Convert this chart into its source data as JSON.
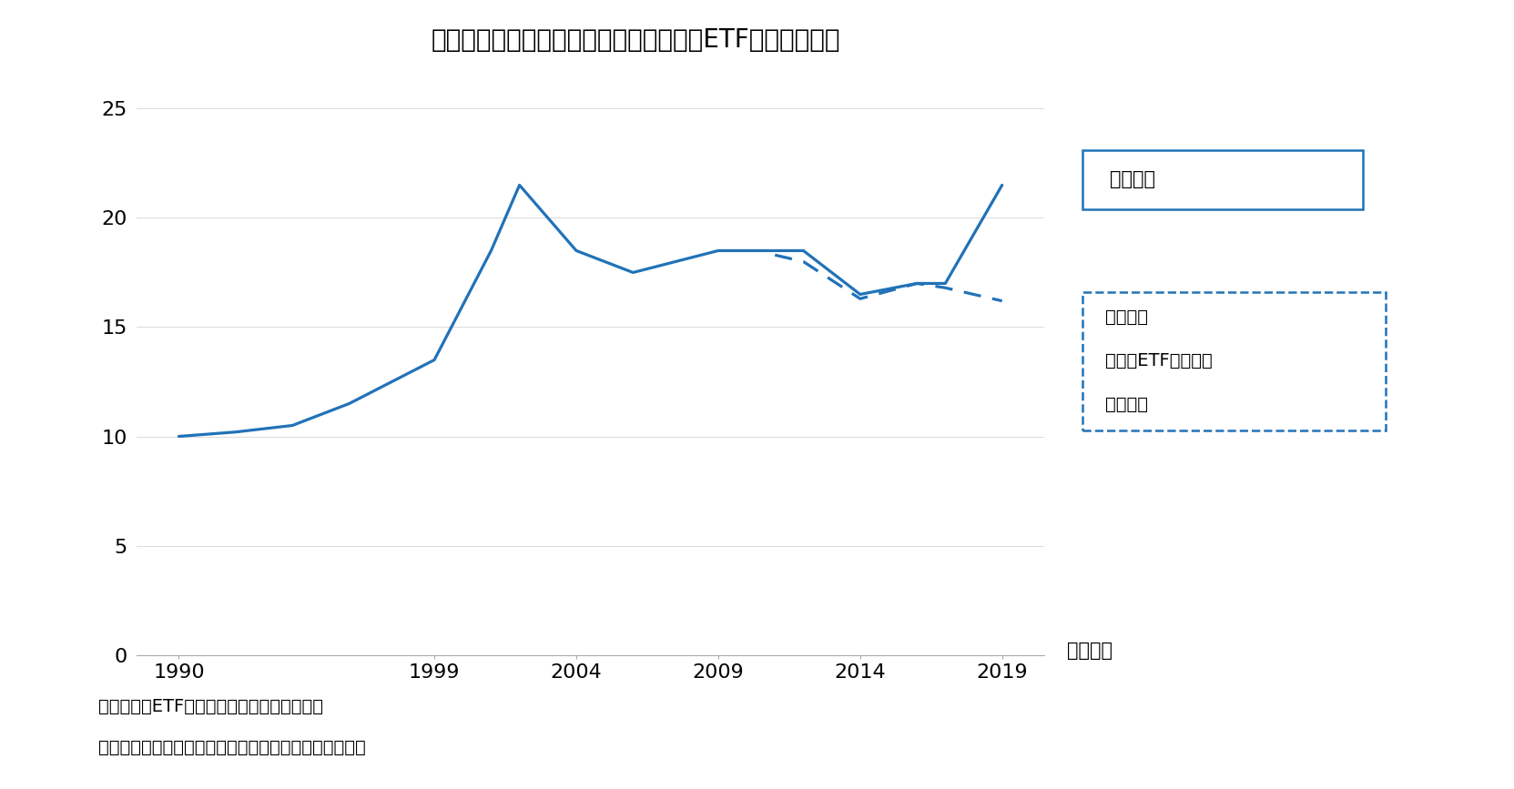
{
  "title": "図表２　信託銀行の保有比率上昇は日銀ETF買入れが要因",
  "line1_label": "信託銀行",
  "line2_label_1": "信託銀行",
  "line2_label_2": "（日銀ETFを除いた",
  "line2_label_3": "試算値）",
  "line1_x": [
    1990,
    1992,
    1994,
    1996,
    1999,
    2001,
    2002,
    2004,
    2006,
    2009,
    2010,
    2011,
    2012,
    2014,
    2016,
    2017,
    2019
  ],
  "line1_y": [
    10.0,
    10.2,
    10.5,
    11.5,
    13.5,
    18.5,
    21.5,
    18.5,
    17.5,
    18.5,
    18.5,
    18.5,
    18.5,
    16.5,
    17.0,
    17.0,
    21.5
  ],
  "line2_x": [
    2011,
    2012,
    2014,
    2016,
    2017,
    2019
  ],
  "line2_y": [
    18.3,
    18.0,
    16.3,
    17.0,
    16.8,
    16.2
  ],
  "line_color": "#2172b8",
  "xlabel_note": "（年度）",
  "xticks": [
    1990,
    1999,
    2004,
    2009,
    2014,
    2019
  ],
  "yticks": [
    0,
    5,
    10,
    15,
    20,
    25
  ],
  "ylim": [
    0,
    26
  ],
  "xlim": [
    1988.5,
    2020.5
  ],
  "note1": "（注）日銀ETF保有額（時価）は弊社試算値",
  "note2": "（資料）東京証券取引所「株式分布状況調査」から作成",
  "background_color": "#ffffff",
  "title_fontsize": 20,
  "tick_fontsize": 16,
  "label_fontsize": 15,
  "note_fontsize": 14
}
